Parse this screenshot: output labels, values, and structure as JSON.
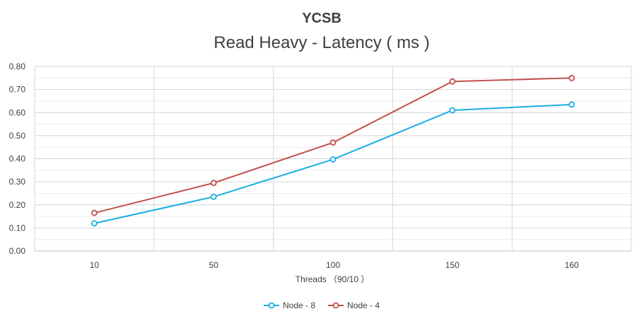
{
  "chart_data": {
    "type": "line",
    "title": "YCSB",
    "subtitle": "Read Heavy - Latency ( ms )",
    "xlabel": "Threads （90/10 ）",
    "ylabel": "",
    "categories": [
      "10",
      "50",
      "100",
      "150",
      "160"
    ],
    "ylim": [
      0,
      0.8
    ],
    "yticks": [
      "0.00",
      "0.10",
      "0.20",
      "0.30",
      "0.40",
      "0.50",
      "0.60",
      "0.70",
      "0.80"
    ],
    "grid": true,
    "legend_position": "bottom",
    "series": [
      {
        "name": "Node - 8",
        "color": "#1aaee5",
        "values": [
          0.12,
          0.235,
          0.397,
          0.61,
          0.635
        ]
      },
      {
        "name": "Node - 4",
        "color": "#c0504d",
        "values": [
          0.165,
          0.295,
          0.47,
          0.735,
          0.75
        ]
      }
    ]
  }
}
